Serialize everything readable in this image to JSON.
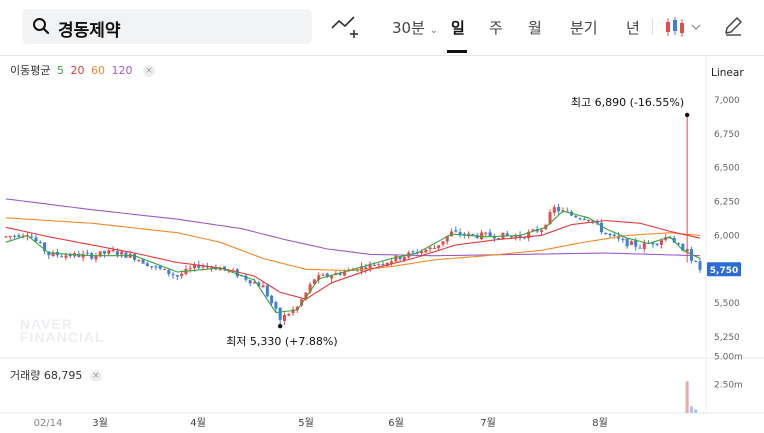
{
  "header": {
    "search_query": "경동제약",
    "interval_label": "30분",
    "tabs": [
      "일",
      "주",
      "월",
      "분기",
      "년"
    ],
    "active_tab": "일"
  },
  "legend": {
    "title": "이동평균",
    "periods": [
      {
        "label": "5",
        "color": "#3aa33a"
      },
      {
        "label": "20",
        "color": "#e23b3b"
      },
      {
        "label": "60",
        "color": "#f08a2a"
      },
      {
        "label": "120",
        "color": "#a05ac8"
      }
    ]
  },
  "scale_mode": "Linear",
  "volume_label": "거래량",
  "volume_value": "68,795",
  "watermark": [
    "NAVER",
    "FINANCIAL"
  ],
  "annotations": {
    "high": {
      "prefix": "최고",
      "value": "6,890",
      "change": "(-16.55%)"
    },
    "low": {
      "prefix": "최저",
      "value": "5,330",
      "change": "(+7.88%)"
    }
  },
  "chart_data": {
    "type": "candlestick",
    "price_axis": {
      "min": 5140,
      "max": 7050,
      "ticks": [
        5250,
        5500,
        5750,
        6000,
        6250,
        6500,
        6750,
        7000
      ],
      "tick_labels": [
        "5,250",
        "5,500",
        "5,750",
        "6,000",
        "6,250",
        "6,500",
        "6,750",
        "7,000"
      ]
    },
    "current_price": {
      "value": 5750,
      "label": "5,750"
    },
    "x_axis": {
      "labels": [
        "02/14",
        "3월",
        "4월",
        "5월",
        "6월",
        "7월",
        "8월"
      ]
    },
    "volume_axis": {
      "max": 6000000,
      "tick_labels": [
        "5.00m",
        "2.50m"
      ],
      "ticks": [
        5000000,
        2500000
      ]
    },
    "colors": {
      "up": "#e84b4b",
      "down": "#3c7de0",
      "current": "#2a6bd6"
    },
    "price_anchors": [
      [
        0,
        5990
      ],
      [
        5,
        6020
      ],
      [
        10,
        5860
      ],
      [
        20,
        5850
      ],
      [
        25,
        5880
      ],
      [
        30,
        5840
      ],
      [
        35,
        5760
      ],
      [
        40,
        5700
      ],
      [
        45,
        5780
      ],
      [
        50,
        5760
      ],
      [
        55,
        5700
      ],
      [
        60,
        5620
      ],
      [
        64,
        5380
      ],
      [
        68,
        5470
      ],
      [
        72,
        5680
      ],
      [
        75,
        5700
      ],
      [
        80,
        5740
      ],
      [
        85,
        5780
      ],
      [
        88,
        5800
      ],
      [
        95,
        5870
      ],
      [
        100,
        5910
      ],
      [
        104,
        6020
      ],
      [
        108,
        6000
      ],
      [
        115,
        6000
      ],
      [
        120,
        5990
      ],
      [
        125,
        6050
      ],
      [
        128,
        6200
      ],
      [
        132,
        6150
      ],
      [
        136,
        6130
      ],
      [
        140,
        6010
      ],
      [
        144,
        5950
      ],
      [
        148,
        5920
      ],
      [
        152,
        5960
      ],
      [
        155,
        6000
      ],
      [
        158,
        5870
      ],
      [
        160,
        5830
      ],
      [
        162,
        5750
      ]
    ],
    "ma_anchors": {
      "ma5": [
        [
          0,
          5950
        ],
        [
          5,
          6000
        ],
        [
          10,
          5870
        ],
        [
          20,
          5850
        ],
        [
          30,
          5850
        ],
        [
          40,
          5730
        ],
        [
          50,
          5760
        ],
        [
          58,
          5670
        ],
        [
          63,
          5430
        ],
        [
          68,
          5450
        ],
        [
          73,
          5680
        ],
        [
          80,
          5740
        ],
        [
          90,
          5830
        ],
        [
          96,
          5870
        ],
        [
          104,
          6010
        ],
        [
          112,
          5990
        ],
        [
          120,
          6000
        ],
        [
          126,
          6060
        ],
        [
          130,
          6180
        ],
        [
          136,
          6130
        ],
        [
          140,
          6050
        ],
        [
          145,
          5980
        ],
        [
          150,
          5940
        ],
        [
          155,
          5990
        ],
        [
          158,
          5890
        ],
        [
          162,
          5830
        ]
      ],
      "ma20": [
        [
          0,
          6060
        ],
        [
          10,
          5990
        ],
        [
          20,
          5930
        ],
        [
          30,
          5870
        ],
        [
          40,
          5800
        ],
        [
          50,
          5760
        ],
        [
          58,
          5700
        ],
        [
          64,
          5580
        ],
        [
          70,
          5530
        ],
        [
          76,
          5650
        ],
        [
          85,
          5750
        ],
        [
          95,
          5830
        ],
        [
          105,
          5930
        ],
        [
          115,
          5970
        ],
        [
          125,
          6000
        ],
        [
          132,
          6080
        ],
        [
          140,
          6110
        ],
        [
          148,
          6090
        ],
        [
          155,
          6030
        ],
        [
          162,
          5980
        ]
      ],
      "ma60": [
        [
          0,
          6130
        ],
        [
          20,
          6090
        ],
        [
          40,
          6020
        ],
        [
          50,
          5950
        ],
        [
          60,
          5830
        ],
        [
          70,
          5750
        ],
        [
          80,
          5740
        ],
        [
          90,
          5770
        ],
        [
          100,
          5820
        ],
        [
          112,
          5850
        ],
        [
          125,
          5890
        ],
        [
          135,
          5950
        ],
        [
          145,
          6000
        ],
        [
          155,
          6020
        ],
        [
          162,
          6000
        ]
      ],
      "ma120": [
        [
          0,
          6270
        ],
        [
          20,
          6190
        ],
        [
          40,
          6120
        ],
        [
          55,
          6050
        ],
        [
          65,
          5970
        ],
        [
          75,
          5900
        ],
        [
          85,
          5860
        ],
        [
          100,
          5850
        ],
        [
          120,
          5860
        ],
        [
          140,
          5870
        ],
        [
          162,
          5850
        ]
      ]
    },
    "spikes": [
      {
        "day": 159,
        "high": 6890,
        "low": 5800,
        "open": 5880,
        "close": 5900
      }
    ],
    "lows": [
      {
        "day": 64,
        "low": 5330
      }
    ],
    "volume_anchors": [
      [
        0,
        40000
      ],
      [
        159,
        2800000
      ],
      [
        160,
        600000
      ],
      [
        161,
        300000
      ],
      [
        162,
        68795
      ]
    ]
  }
}
